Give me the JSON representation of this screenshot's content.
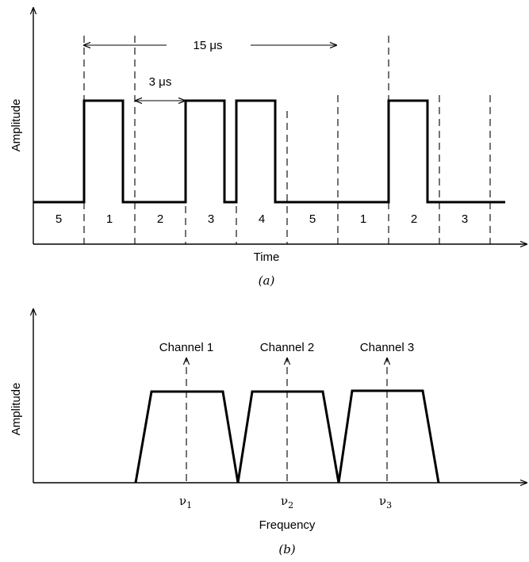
{
  "panel_a": {
    "caption": "(a)",
    "y_label": "Amplitude",
    "x_label": "Time",
    "period_label": "15 μs",
    "slot_label": "3 μs",
    "slots": [
      "5",
      "1",
      "2",
      "3",
      "4",
      "5",
      "1",
      "2",
      "3"
    ],
    "pulse_levels": [
      0,
      1,
      0,
      1,
      1,
      0,
      0,
      1,
      0
    ]
  },
  "panel_b": {
    "caption": "(b)",
    "y_label": "Amplitude",
    "x_label": "Frequency",
    "channels": [
      {
        "name": "Channel 1",
        "freq_symbol": "ν",
        "freq_sub": "1"
      },
      {
        "name": "Channel 2",
        "freq_symbol": "ν",
        "freq_sub": "2"
      },
      {
        "name": "Channel 3",
        "freq_symbol": "ν",
        "freq_sub": "3"
      }
    ]
  }
}
